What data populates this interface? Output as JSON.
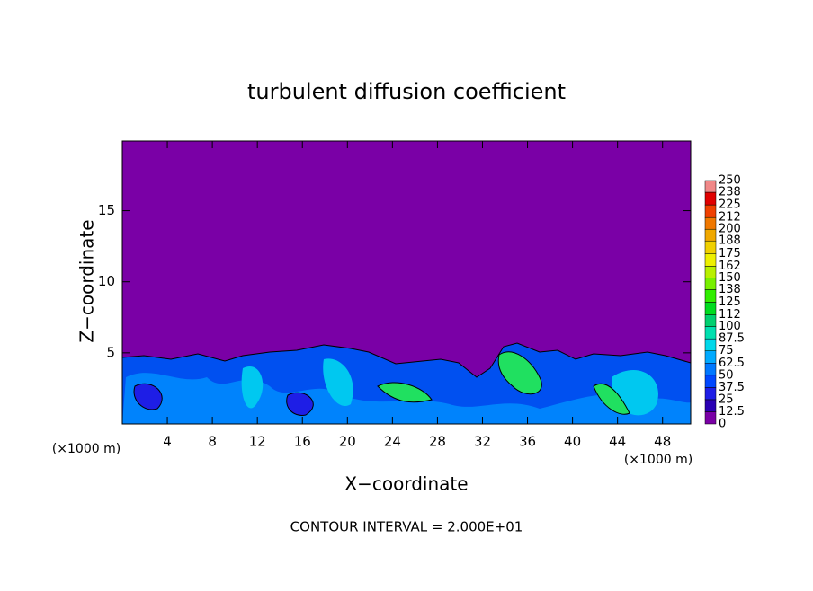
{
  "chart_data": {
    "type": "contour",
    "title": "turbulent diffusion coefficient",
    "x_label": "X−coordinate",
    "y_label": "Z−coordinate",
    "x_unit_label": "(×1000 m)",
    "footer": "CONTOUR INTERVAL = 2.000E+01",
    "xlim": [
      0,
      50.5
    ],
    "xticks": [
      4,
      8,
      12,
      16,
      20,
      24,
      28,
      32,
      36,
      40,
      44,
      48
    ],
    "ylim": [
      0,
      19.9
    ],
    "yticks": [
      5,
      10,
      15
    ],
    "colorbar": {
      "levels": [
        0,
        12.5,
        25,
        37.5,
        50,
        62.5,
        75,
        87.5,
        100,
        112,
        125,
        138,
        150,
        162,
        175,
        188,
        200,
        212,
        225,
        238,
        250
      ],
      "colors": [
        "#7a00a6",
        "#2a00b4",
        "#1e1ee6",
        "#0048ff",
        "#0078ff",
        "#00aaff",
        "#00d8ea",
        "#00e0b0",
        "#00d070",
        "#00dc20",
        "#30ee00",
        "#78f000",
        "#b8f000",
        "#eef000",
        "#f0d000",
        "#f0a800",
        "#f07800",
        "#f04000",
        "#e00000",
        "#f08888"
      ]
    }
  }
}
